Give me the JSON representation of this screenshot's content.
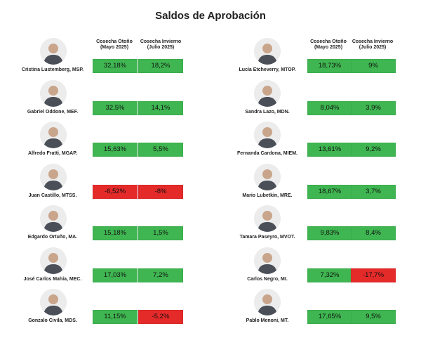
{
  "title": "Saldos de Aprobación",
  "colors": {
    "positive": "#3fb651",
    "negative": "#e52a2a"
  },
  "columns": {
    "otono": {
      "line1": "Cosecha Otoño",
      "line2": "(Mayo 2025)"
    },
    "invierno": {
      "line1": "Cosecha Invierno",
      "line2": "(Julio 2025)"
    }
  },
  "left": [
    {
      "name": "Cristina Lustemberg, MSP.",
      "otono": "32,18%",
      "invierno": "18,2%"
    },
    {
      "name": "Gabriel Oddone, MEF.",
      "otono": "32,5%",
      "invierno": "14,1%"
    },
    {
      "name": "Alfredo Fratti, MGAP.",
      "otono": "15,63%",
      "invierno": "5,5%"
    },
    {
      "name": "Juan Castillo, MTSS.",
      "otono": "-6,52%",
      "invierno": "-8%"
    },
    {
      "name": "Edgardo Ortuño, MA.",
      "otono": "15,18%",
      "invierno": "1,5%"
    },
    {
      "name": "José Carlos Mahía, MEC.",
      "otono": "17,03%",
      "invierno": "7,2%"
    },
    {
      "name": "Gonzalo Civila, MDS.",
      "otono": "11,15%",
      "invierno": "-5,2%"
    }
  ],
  "right": [
    {
      "name": "Lucía Etcheverry, MTOP.",
      "otono": "18,73%",
      "invierno": "9%"
    },
    {
      "name": "Sandra Lazo, MDN.",
      "otono": "8,04%",
      "invierno": "3,9%"
    },
    {
      "name": "Fernanda Cardona, MIEM.",
      "otono": "13,61%",
      "invierno": "9,2%"
    },
    {
      "name": "Mario Lubetkin, MRE.",
      "otono": "18,67%",
      "invierno": "3,7%"
    },
    {
      "name": "Tamara Paseyro, MVOT.",
      "otono": "9,83%",
      "invierno": "8,4%"
    },
    {
      "name": "Carlos Negro, MI.",
      "otono": "7,32%",
      "invierno": "-17,7%"
    },
    {
      "name": "Pablo Menoni, MT.",
      "otono": "17,65%",
      "invierno": "9,5%"
    }
  ],
  "chart_data": {
    "type": "table",
    "title": "Saldos de Aprobación",
    "columns": [
      "Cosecha Otoño (Mayo 2025)",
      "Cosecha Invierno (Julio 2025)"
    ],
    "rows": [
      {
        "minister": "Cristina Lustemberg, MSP.",
        "otono": 32.18,
        "invierno": 18.2
      },
      {
        "minister": "Gabriel Oddone, MEF.",
        "otono": 32.5,
        "invierno": 14.1
      },
      {
        "minister": "Alfredo Fratti, MGAP.",
        "otono": 15.63,
        "invierno": 5.5
      },
      {
        "minister": "Juan Castillo, MTSS.",
        "otono": -6.52,
        "invierno": -8
      },
      {
        "minister": "Edgardo Ortuño, MA.",
        "otono": 15.18,
        "invierno": 1.5
      },
      {
        "minister": "José Carlos Mahía, MEC.",
        "otono": 17.03,
        "invierno": 7.2
      },
      {
        "minister": "Gonzalo Civila, MDS.",
        "otono": 11.15,
        "invierno": -5.2
      },
      {
        "minister": "Lucía Etcheverry, MTOP.",
        "otono": 18.73,
        "invierno": 9
      },
      {
        "minister": "Sandra Lazo, MDN.",
        "otono": 8.04,
        "invierno": 3.9
      },
      {
        "minister": "Fernanda Cardona, MIEM.",
        "otono": 13.61,
        "invierno": 9.2
      },
      {
        "minister": "Mario Lubetkin, MRE.",
        "otono": 18.67,
        "invierno": 3.7
      },
      {
        "minister": "Tamara Paseyro, MVOT.",
        "otono": 9.83,
        "invierno": 8.4
      },
      {
        "minister": "Carlos Negro, MI.",
        "otono": 7.32,
        "invierno": -17.7
      },
      {
        "minister": "Pablo Menoni, MT.",
        "otono": 17.65,
        "invierno": 9.5
      }
    ]
  }
}
